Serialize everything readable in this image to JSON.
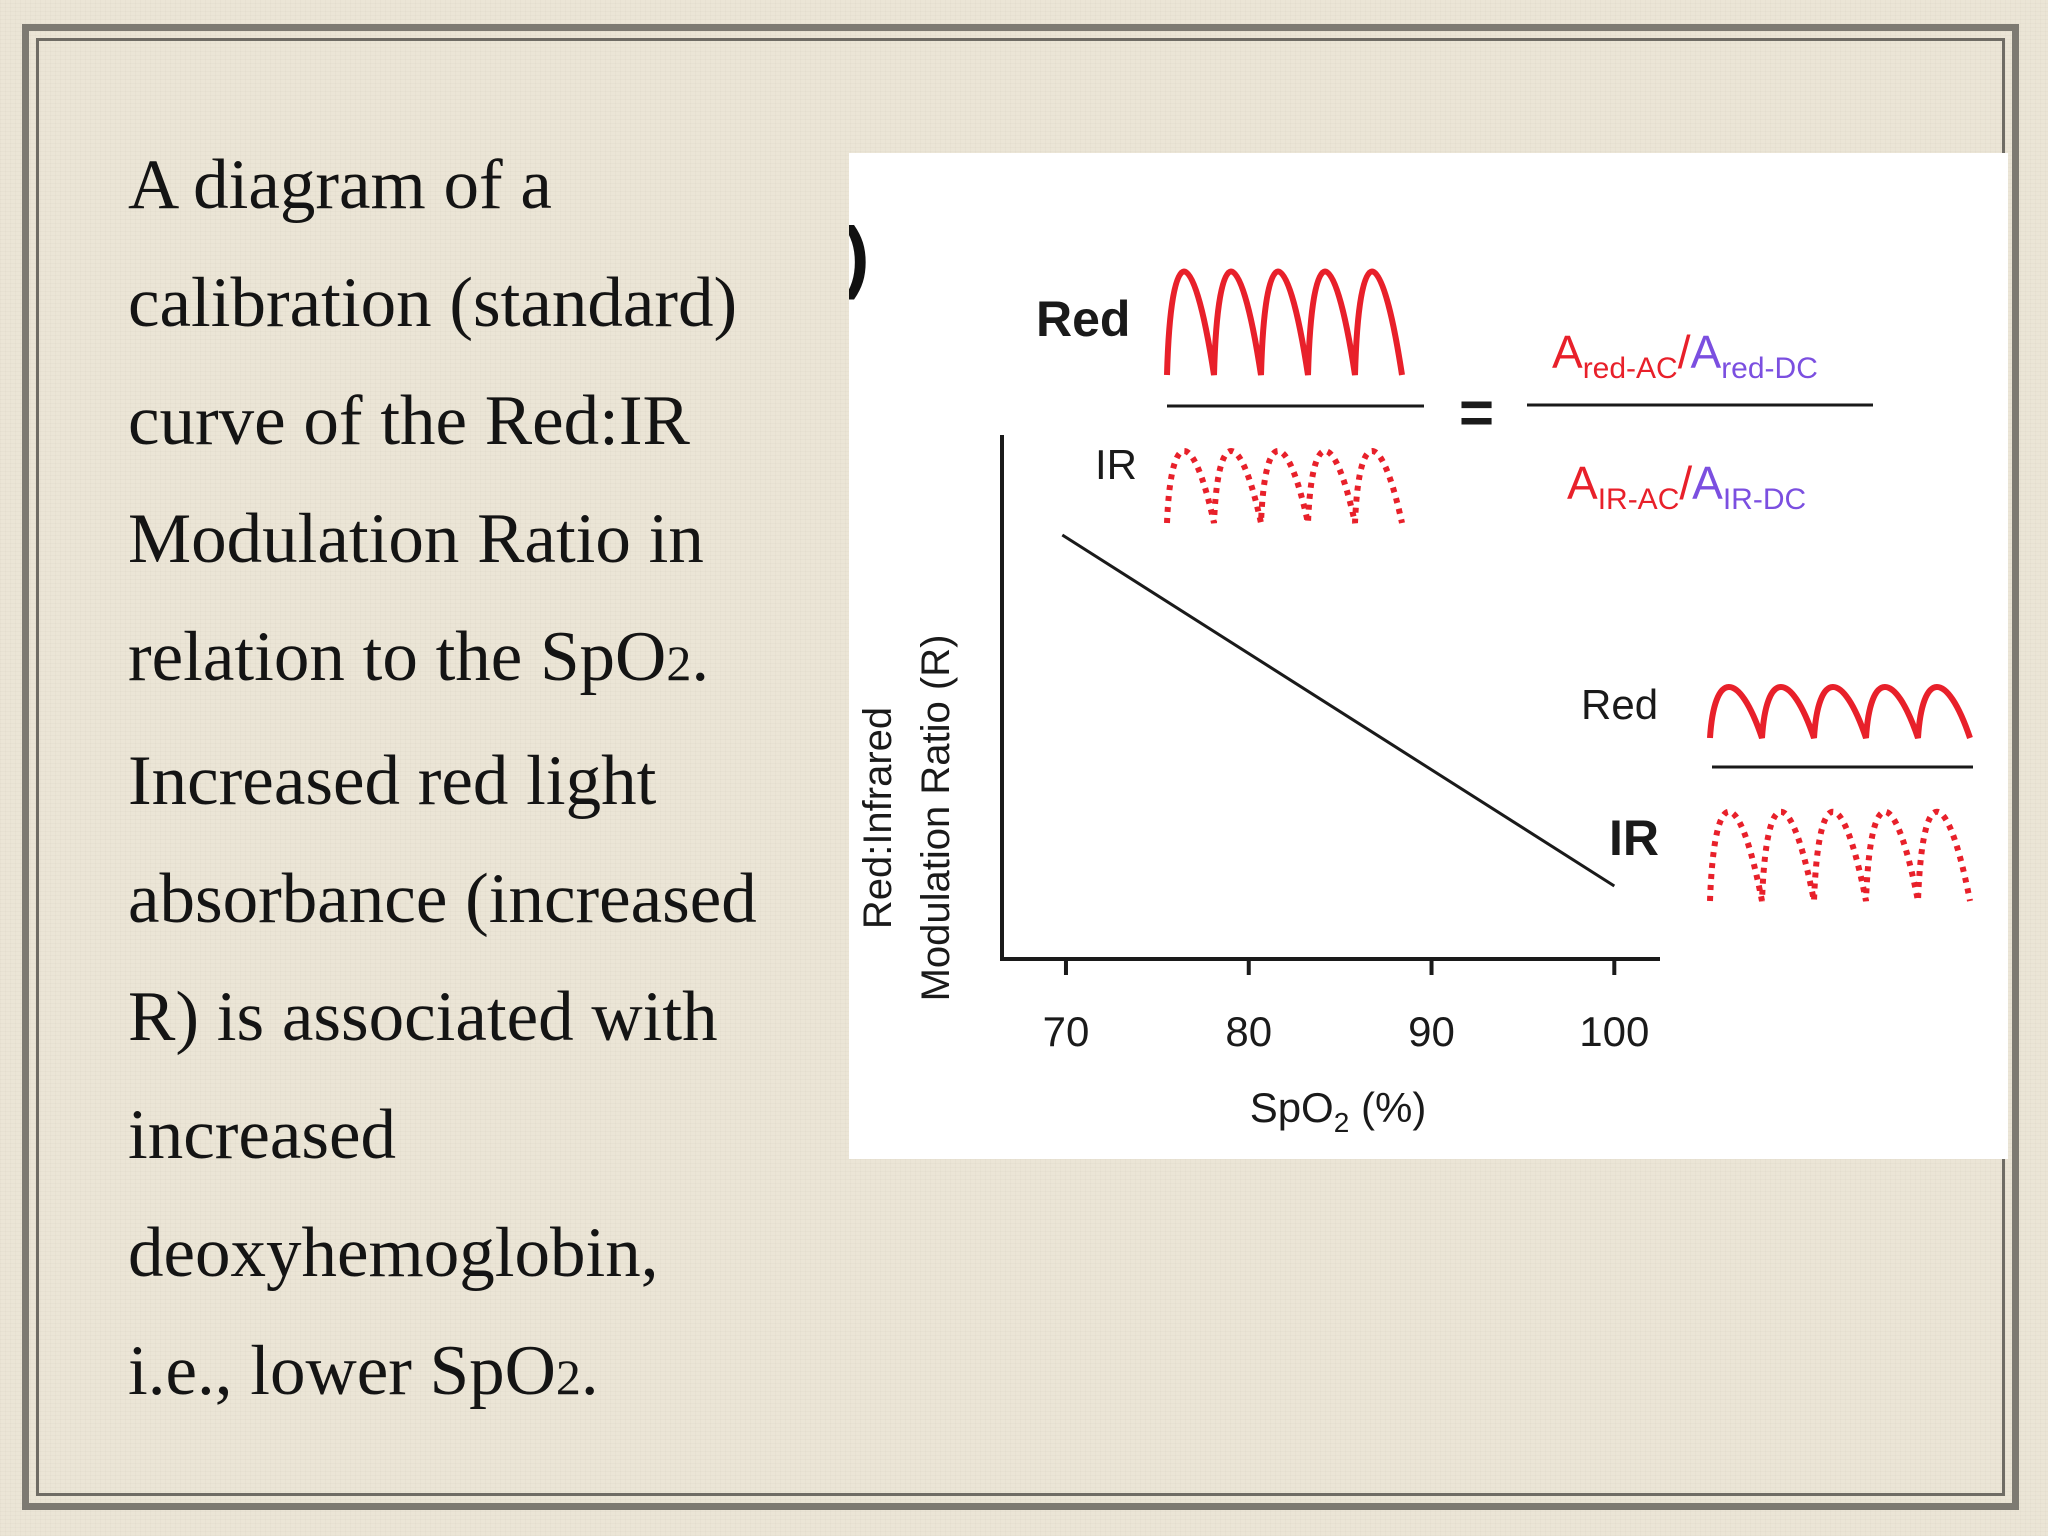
{
  "caption": {
    "line1": "A diagram of a",
    "line2": "calibration (standard)",
    "line3": "curve of the Red:IR",
    "line4": "Modulation Ratio in",
    "line5_pre": "relation to the SpO",
    "line5_sub": "2",
    "line5_post": ".",
    "line6": "Increased red light",
    "line7": "absorbance (increased",
    "line8": "R) is associated with",
    "line9": "increased",
    "line10": "deoxyhemoglobin,",
    "line11_pre": "i.e., lower SpO",
    "line11_sub": "2",
    "line11_post": "."
  },
  "figure": {
    "panel_letter_fragment": ")",
    "top_wave_red_label": "Red",
    "top_wave_ir_label": "IR",
    "equals": "=",
    "formula": {
      "num_a1": "A",
      "num_s1": "red-AC",
      "num_slash": "/",
      "num_a2": "A",
      "num_s2": "red-DC",
      "den_a1": "A",
      "den_s1": "IR-AC",
      "den_slash": "/",
      "den_a2": "A",
      "den_s2": "IR-DC"
    },
    "right_wave_red_label": "Red",
    "right_wave_ir_label": "IR",
    "ylabel_line1": "Red:Infrared",
    "ylabel_line2": "Modulation Ratio (R)",
    "xlabel_pre": "SpO",
    "xlabel_sub": "2",
    "xlabel_post": " (%)",
    "xticks": [
      "70",
      "80",
      "90",
      "100"
    ]
  },
  "colors": {
    "red_wave": "#e8202a",
    "formula_red": "#e8202a",
    "formula_purple": "#7b4fe0",
    "axis": "#1a1a1a"
  },
  "chart_data": {
    "type": "line",
    "x": [
      69.8,
      100
    ],
    "y_relative": [
      1.0,
      0.0
    ],
    "xlim": [
      66.5,
      102.5
    ],
    "xticks": [
      70,
      80,
      90,
      100
    ],
    "xlabel": "SpO2 (%)",
    "ylabel": "Red:Infrared Modulation Ratio (R)",
    "y_tick_labels": "none",
    "trend": "decreasing linear"
  }
}
